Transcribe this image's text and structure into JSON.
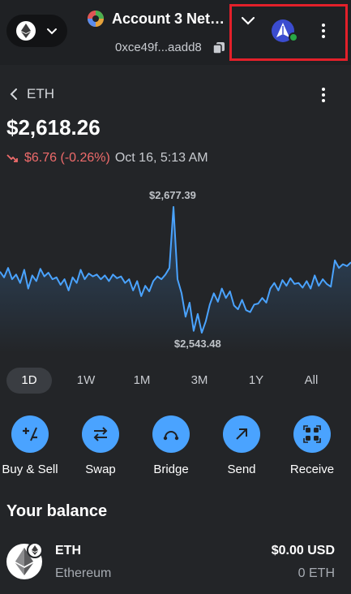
{
  "header": {
    "account_name": "Account 3 Net…",
    "address": "0xce49f...aadd8"
  },
  "token": {
    "symbol": "ETH",
    "price": "$2,618.26",
    "change": "$6.76 (-0.26%)",
    "timestamp": "Oct 16, 5:13 AM"
  },
  "chart_data": {
    "type": "line",
    "high_label": "$2,677.39",
    "low_label": "$2,543.48",
    "color": "#4aa3ff",
    "values": [
      2608,
      2602,
      2612,
      2600,
      2605,
      2596,
      2610,
      2590,
      2604,
      2598,
      2611,
      2603,
      2607,
      2600,
      2602,
      2594,
      2600,
      2588,
      2602,
      2596,
      2610,
      2600,
      2606,
      2603,
      2605,
      2600,
      2604,
      2598,
      2605,
      2601,
      2603,
      2596,
      2600,
      2588,
      2598,
      2582,
      2593,
      2587,
      2598,
      2603,
      2600,
      2605,
      2612,
      2677,
      2600,
      2585,
      2560,
      2575,
      2545,
      2563,
      2543,
      2555,
      2573,
      2585,
      2576,
      2590,
      2580,
      2587,
      2572,
      2568,
      2578,
      2567,
      2565,
      2573,
      2574,
      2580,
      2575,
      2590,
      2596,
      2588,
      2599,
      2593,
      2601,
      2595,
      2596,
      2591,
      2598,
      2590,
      2604,
      2593,
      2600,
      2595,
      2592,
      2620,
      2612,
      2616,
      2614,
      2618
    ]
  },
  "tabs": [
    "1D",
    "1W",
    "1M",
    "3M",
    "1Y",
    "All"
  ],
  "active_tab": "1D",
  "actions": [
    "Buy & Sell",
    "Swap",
    "Bridge",
    "Send",
    "Receive"
  ],
  "balance": {
    "title": "Your balance",
    "symbol": "ETH",
    "name": "Ethereum",
    "fiat": "$0.00 USD",
    "amount": "0 ETH"
  },
  "colors": {
    "accent": "#4aa3ff",
    "negative": "#ef6b6b",
    "online": "#28a745",
    "highlight": "#e3202a"
  }
}
